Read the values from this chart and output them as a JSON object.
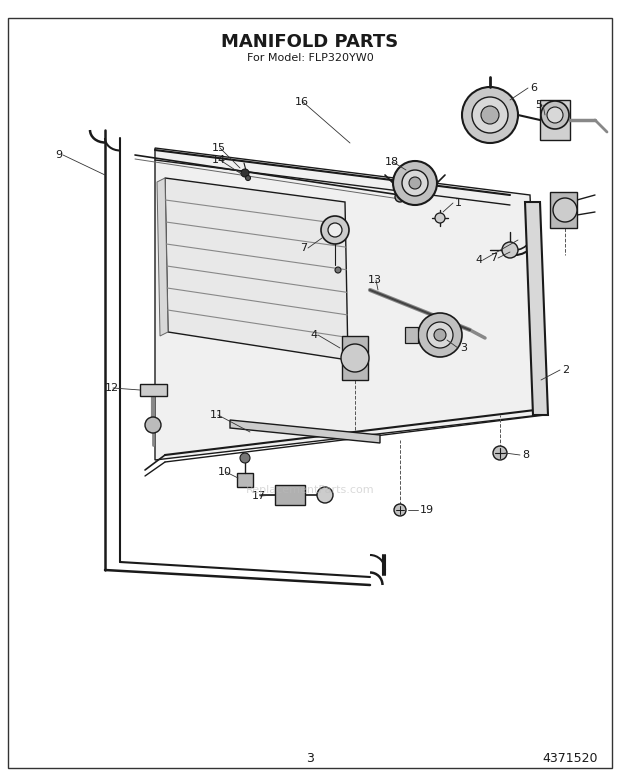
{
  "title": "MANIFOLD PARTS",
  "subtitle": "For Model: FLP320YW0",
  "page_number": "3",
  "part_number": "4371520",
  "bg_color": "#ffffff",
  "line_color": "#1a1a1a",
  "title_fontsize": 12,
  "subtitle_fontsize": 7.5,
  "footer_fontsize": 8.5,
  "label_fontsize": 8,
  "watermark": "ReplacementParts.com",
  "border_color": "#333333"
}
